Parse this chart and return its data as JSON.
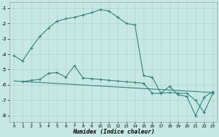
{
  "xlabel": "Humidex (Indice chaleur)",
  "background_color": "#c5e8e5",
  "grid_color": "#aacccc",
  "line_color": "#2e7d72",
  "xlim": [
    -0.5,
    23.5
  ],
  "ylim": [
    -8.4,
    -0.6
  ],
  "yticks": [
    -8,
    -7,
    -6,
    -5,
    -4,
    -3,
    -2,
    -1
  ],
  "xticks": [
    0,
    1,
    2,
    3,
    4,
    5,
    6,
    7,
    8,
    9,
    10,
    11,
    12,
    13,
    14,
    15,
    16,
    17,
    18,
    19,
    20,
    21,
    22,
    23
  ],
  "line1_x": [
    0,
    1,
    2,
    3,
    4,
    5,
    6,
    7,
    8,
    9,
    10,
    11,
    12,
    13,
    14,
    15,
    16,
    17,
    18,
    19,
    20,
    21,
    22,
    23
  ],
  "line1_y": [
    -4.1,
    -4.45,
    -3.6,
    -2.85,
    -2.3,
    -1.85,
    -1.7,
    -1.6,
    -1.45,
    -1.3,
    -1.1,
    -1.2,
    -1.6,
    -2.0,
    -2.1,
    -5.4,
    -5.5,
    -6.55,
    -6.5,
    -6.55,
    -6.55,
    -7.0,
    -7.8,
    -6.55
  ],
  "line2_x": [
    1,
    2,
    3,
    4,
    5,
    6,
    7,
    8,
    9,
    10,
    11,
    12,
    13,
    14,
    15,
    16,
    17,
    18,
    19,
    20,
    21,
    22,
    23
  ],
  "line2_y": [
    -5.8,
    -5.7,
    -5.65,
    -5.25,
    -5.2,
    -5.5,
    -4.75,
    -5.55,
    -5.6,
    -5.65,
    -5.7,
    -5.75,
    -5.8,
    -5.85,
    -5.9,
    -6.55,
    -6.55,
    -6.1,
    -6.65,
    -6.75,
    -8.0,
    -6.8,
    -6.45
  ],
  "line3_x": [
    0,
    23
  ],
  "line3_y": [
    -5.75,
    -6.5
  ]
}
